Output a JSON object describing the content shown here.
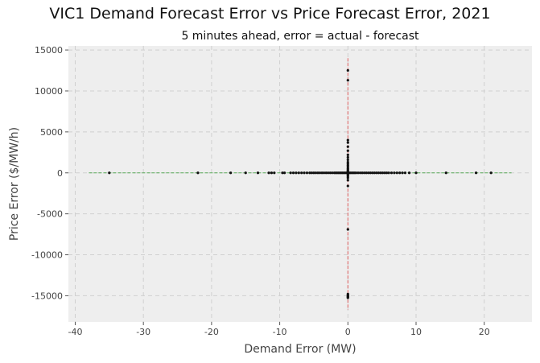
{
  "chart_data": {
    "type": "scatter",
    "title": "VIC1 Demand Forecast Error vs Price Forecast Error, 2021",
    "subtitle": "5 minutes ahead, error = actual - forecast",
    "xlabel": "Demand Error (MW)",
    "ylabel": "Price Error ($/MW/h)",
    "xlim": [
      -41,
      27
    ],
    "ylim": [
      -18200,
      15500
    ],
    "xticks": [
      -40,
      -30,
      -20,
      -10,
      0,
      10,
      20
    ],
    "yticks": [
      -15000,
      -10000,
      -5000,
      0,
      5000,
      10000,
      15000
    ],
    "grid": true,
    "colors": {
      "points": "#111111",
      "zero_x_line": "#e06060",
      "zero_y_line": "#5aaa5a",
      "grid": "#d0d0d0",
      "background": "#eeeeee"
    },
    "reference_lines": {
      "vertical_at_x": 0,
      "vertical_y_range": [
        -16700,
        14000
      ],
      "horizontal_at_y": 0,
      "horizontal_x_range": [
        -38,
        24
      ]
    },
    "points": [
      [
        -35,
        0
      ],
      [
        -22,
        0
      ],
      [
        -17.2,
        0
      ],
      [
        -15,
        0
      ],
      [
        -13.2,
        0
      ],
      [
        -11.6,
        0
      ],
      [
        -11.2,
        0
      ],
      [
        -10.8,
        0
      ],
      [
        -9.6,
        0
      ],
      [
        -9.3,
        0
      ],
      [
        -8.4,
        0
      ],
      [
        -8.0,
        0
      ],
      [
        -7.6,
        0
      ],
      [
        -7.2,
        0
      ],
      [
        -6.8,
        0
      ],
      [
        -6.4,
        0
      ],
      [
        -6.0,
        0
      ],
      [
        -5.6,
        0
      ],
      [
        -5.3,
        0
      ],
      [
        -5.0,
        0
      ],
      [
        -4.7,
        0
      ],
      [
        -4.4,
        0
      ],
      [
        -4.1,
        0
      ],
      [
        -3.8,
        0
      ],
      [
        -3.5,
        0
      ],
      [
        -3.2,
        0
      ],
      [
        -2.9,
        0
      ],
      [
        -2.6,
        0
      ],
      [
        -2.3,
        0
      ],
      [
        -2.0,
        0
      ],
      [
        -1.8,
        0
      ],
      [
        -1.6,
        0
      ],
      [
        -1.4,
        0
      ],
      [
        -1.2,
        0
      ],
      [
        -1.0,
        0
      ],
      [
        -0.8,
        0
      ],
      [
        -0.6,
        0
      ],
      [
        -0.4,
        0
      ],
      [
        -0.2,
        0
      ],
      [
        0.2,
        0
      ],
      [
        0.4,
        0
      ],
      [
        0.6,
        0
      ],
      [
        0.8,
        0
      ],
      [
        1.0,
        0
      ],
      [
        1.2,
        0
      ],
      [
        1.5,
        0
      ],
      [
        1.8,
        0
      ],
      [
        2.1,
        0
      ],
      [
        2.4,
        0
      ],
      [
        2.7,
        0
      ],
      [
        3.0,
        0
      ],
      [
        3.3,
        0
      ],
      [
        3.6,
        0
      ],
      [
        3.9,
        0
      ],
      [
        4.2,
        0
      ],
      [
        4.5,
        0
      ],
      [
        4.8,
        0
      ],
      [
        5.1,
        0
      ],
      [
        5.4,
        0
      ],
      [
        5.7,
        0
      ],
      [
        6.0,
        0
      ],
      [
        6.4,
        0
      ],
      [
        6.8,
        0
      ],
      [
        7.2,
        0
      ],
      [
        7.6,
        0
      ],
      [
        8.0,
        0
      ],
      [
        8.4,
        0
      ],
      [
        9.0,
        0
      ],
      [
        10.0,
        0
      ],
      [
        14.4,
        0
      ],
      [
        18.8,
        0
      ],
      [
        21,
        0
      ],
      [
        0,
        12500
      ],
      [
        0,
        11300
      ],
      [
        0,
        4000
      ],
      [
        0,
        3700
      ],
      [
        0,
        3200
      ],
      [
        0,
        2700
      ],
      [
        0,
        2200
      ],
      [
        0,
        1900
      ],
      [
        0,
        1600
      ],
      [
        0,
        1300
      ],
      [
        0,
        1100
      ],
      [
        0,
        900
      ],
      [
        0,
        700
      ],
      [
        0,
        500
      ],
      [
        0,
        350
      ],
      [
        0,
        200
      ],
      [
        0,
        100
      ],
      [
        0,
        -100
      ],
      [
        0,
        -250
      ],
      [
        0,
        -400
      ],
      [
        0,
        -600
      ],
      [
        0,
        -900
      ],
      [
        0,
        -1600
      ],
      [
        0,
        -6900
      ],
      [
        0,
        -14800
      ],
      [
        0,
        -14950
      ],
      [
        0,
        -15050
      ],
      [
        0,
        -15150
      ],
      [
        0,
        -15250
      ]
    ]
  }
}
